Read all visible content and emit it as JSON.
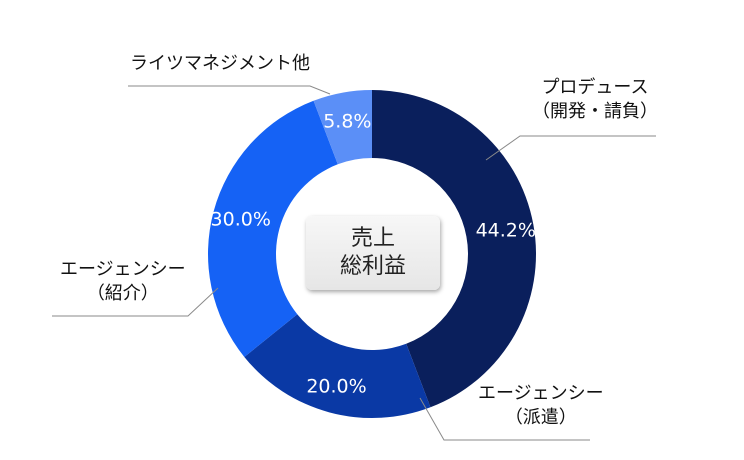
{
  "chart_data": {
    "type": "pie",
    "title": "売上総利益",
    "center_label": [
      "売上",
      "総利益"
    ],
    "segments": [
      {
        "name": "プロデュース（開発・請負）",
        "label_lines": [
          "プロデュース",
          "（開発・請負）"
        ],
        "value": 44.2,
        "value_label": "44.2%",
        "color": "#0a1f5c"
      },
      {
        "name": "エージェンシー（派遣）",
        "label_lines": [
          "エージェンシー",
          "（派遣）"
        ],
        "value": 20.0,
        "value_label": "20.0%",
        "color": "#0a39a5"
      },
      {
        "name": "エージェンシー（紹介）",
        "label_lines": [
          "エージェンシー",
          "（紹介）"
        ],
        "value": 30.0,
        "value_label": "30.0%",
        "color": "#1562f5"
      },
      {
        "name": "ライツマネジメント他",
        "label_lines": [
          "ライツマネジメント他"
        ],
        "value": 5.8,
        "value_label": "5.8%",
        "color": "#5b8ff7"
      }
    ]
  }
}
